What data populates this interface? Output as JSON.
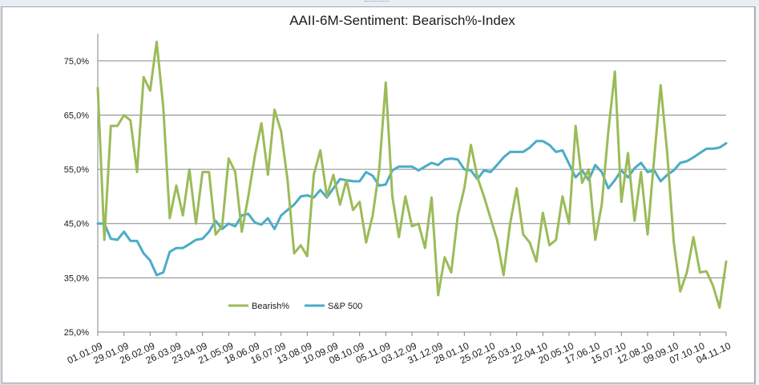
{
  "chart_data": {
    "type": "line",
    "title": "AAII-6M-Sentiment:  Bearisch%-Index",
    "xlabel": "",
    "ylabel": "",
    "ylim": [
      25,
      80
    ],
    "yticks": [
      25,
      35,
      45,
      55,
      65,
      75
    ],
    "ytick_labels": [
      "25,0%",
      "35,0%",
      "45,0%",
      "55,0%",
      "65,0%",
      "75,0%"
    ],
    "grid": true,
    "legend_position": "bottom-left",
    "xtick_labels": [
      "01.01.09",
      "29.01.09",
      "26.02.09",
      "26.03.09",
      "23.04.09",
      "21.05.09",
      "18.06.09",
      "16.07.09",
      "13.08.09",
      "10.09.09",
      "08.10.09",
      "05.11.09",
      "03.12.09",
      "31.12.09",
      "28.01.10",
      "25.02.10",
      "25.03.10",
      "22.04.10",
      "20.05.10",
      "17.06.10",
      "15.07.10",
      "12.08.10",
      "09.09.10",
      "07.10.10",
      "04.11.10"
    ],
    "series": [
      {
        "name": "Bearish%",
        "color": "#9bbb59",
        "values": [
          70.0,
          42.0,
          63.0,
          63.0,
          65.0,
          64.0,
          54.5,
          72.0,
          69.5,
          78.5,
          66.5,
          46.0,
          52.0,
          46.5,
          55.0,
          45.0,
          54.5,
          54.5,
          43.0,
          44.5,
          57.0,
          54.5,
          43.5,
          50.0,
          57.5,
          63.5,
          54.0,
          66.0,
          62.0,
          53.0,
          39.5,
          41.0,
          39.0,
          54.0,
          58.5,
          50.0,
          54.0,
          48.5,
          53.0,
          47.5,
          49.0,
          41.5,
          46.5,
          55.0,
          71.0,
          50.0,
          42.5,
          50.0,
          44.5,
          45.0,
          40.5,
          49.8,
          31.8,
          38.8,
          36.0,
          46.5,
          51.5,
          59.5,
          53.5,
          50.0,
          46.0,
          42.0,
          35.5,
          45.0,
          51.5,
          43.0,
          41.5,
          38.0,
          47.0,
          41.0,
          42.0,
          50.0,
          45.0,
          63.0,
          52.5,
          55.0,
          42.0,
          48.5,
          62.0,
          73.0,
          49.0,
          58.0,
          45.5,
          54.5,
          43.0,
          57.0,
          70.5,
          58.0,
          41.5,
          32.5,
          36.0,
          42.5,
          36.0,
          36.2,
          33.5,
          29.5,
          38.0
        ]
      },
      {
        "name": "S&P 500",
        "color": "#4bacc6",
        "values": [
          45.0,
          45.0,
          42.2,
          42.0,
          43.5,
          41.8,
          41.8,
          39.5,
          38.2,
          35.5,
          36.0,
          39.8,
          40.5,
          40.5,
          41.2,
          42.0,
          42.2,
          43.5,
          45.5,
          44.0,
          45.0,
          44.5,
          46.5,
          46.8,
          45.2,
          44.8,
          46.0,
          44.0,
          46.5,
          47.5,
          48.5,
          50.0,
          50.2,
          49.8,
          51.2,
          49.8,
          51.5,
          53.2,
          53.0,
          52.8,
          52.8,
          54.5,
          53.8,
          52.0,
          52.2,
          54.8,
          55.5,
          55.5,
          55.5,
          54.8,
          55.5,
          56.2,
          55.8,
          56.8,
          57.0,
          56.8,
          55.0,
          54.8,
          53.2,
          54.8,
          54.5,
          55.8,
          57.2,
          58.2,
          58.2,
          58.2,
          59.0,
          60.2,
          60.2,
          59.5,
          58.2,
          58.5,
          56.0,
          53.5,
          54.8,
          53.0,
          55.8,
          54.5,
          51.5,
          53.0,
          54.8,
          53.5,
          55.2,
          56.2,
          54.5,
          54.8,
          52.8,
          54.0,
          54.8,
          56.2,
          56.5,
          57.2,
          58.0,
          58.8,
          58.8,
          59.0,
          59.8
        ]
      }
    ]
  }
}
